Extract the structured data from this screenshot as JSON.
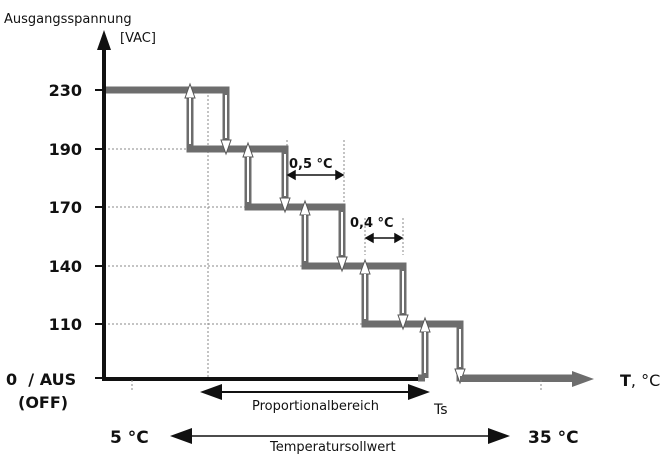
{
  "y_axis": {
    "title": "Ausgangsspannung",
    "unit": "[VAC]",
    "ticks": [
      "230",
      "190",
      "170",
      "140",
      "110"
    ],
    "zero_label_line1": "0  / AUS",
    "zero_label_line2": "(OFF)"
  },
  "x_axis": {
    "symbol": "T",
    "unit": ", °C"
  },
  "annotations": {
    "hysteresis_1": "0,5 °C",
    "hysteresis_2": "0,4 °C",
    "proportional_band": "Proportionalbereich",
    "setpoint": "Ts"
  },
  "setpoint_range": {
    "min": "5 °C",
    "max": "35 °C",
    "label": "Temperatursollwert"
  },
  "colors": {
    "axis": "#111111",
    "step_line": "#6d6d6d",
    "arrow_fill": "#ffffff",
    "grid": "#888888"
  }
}
